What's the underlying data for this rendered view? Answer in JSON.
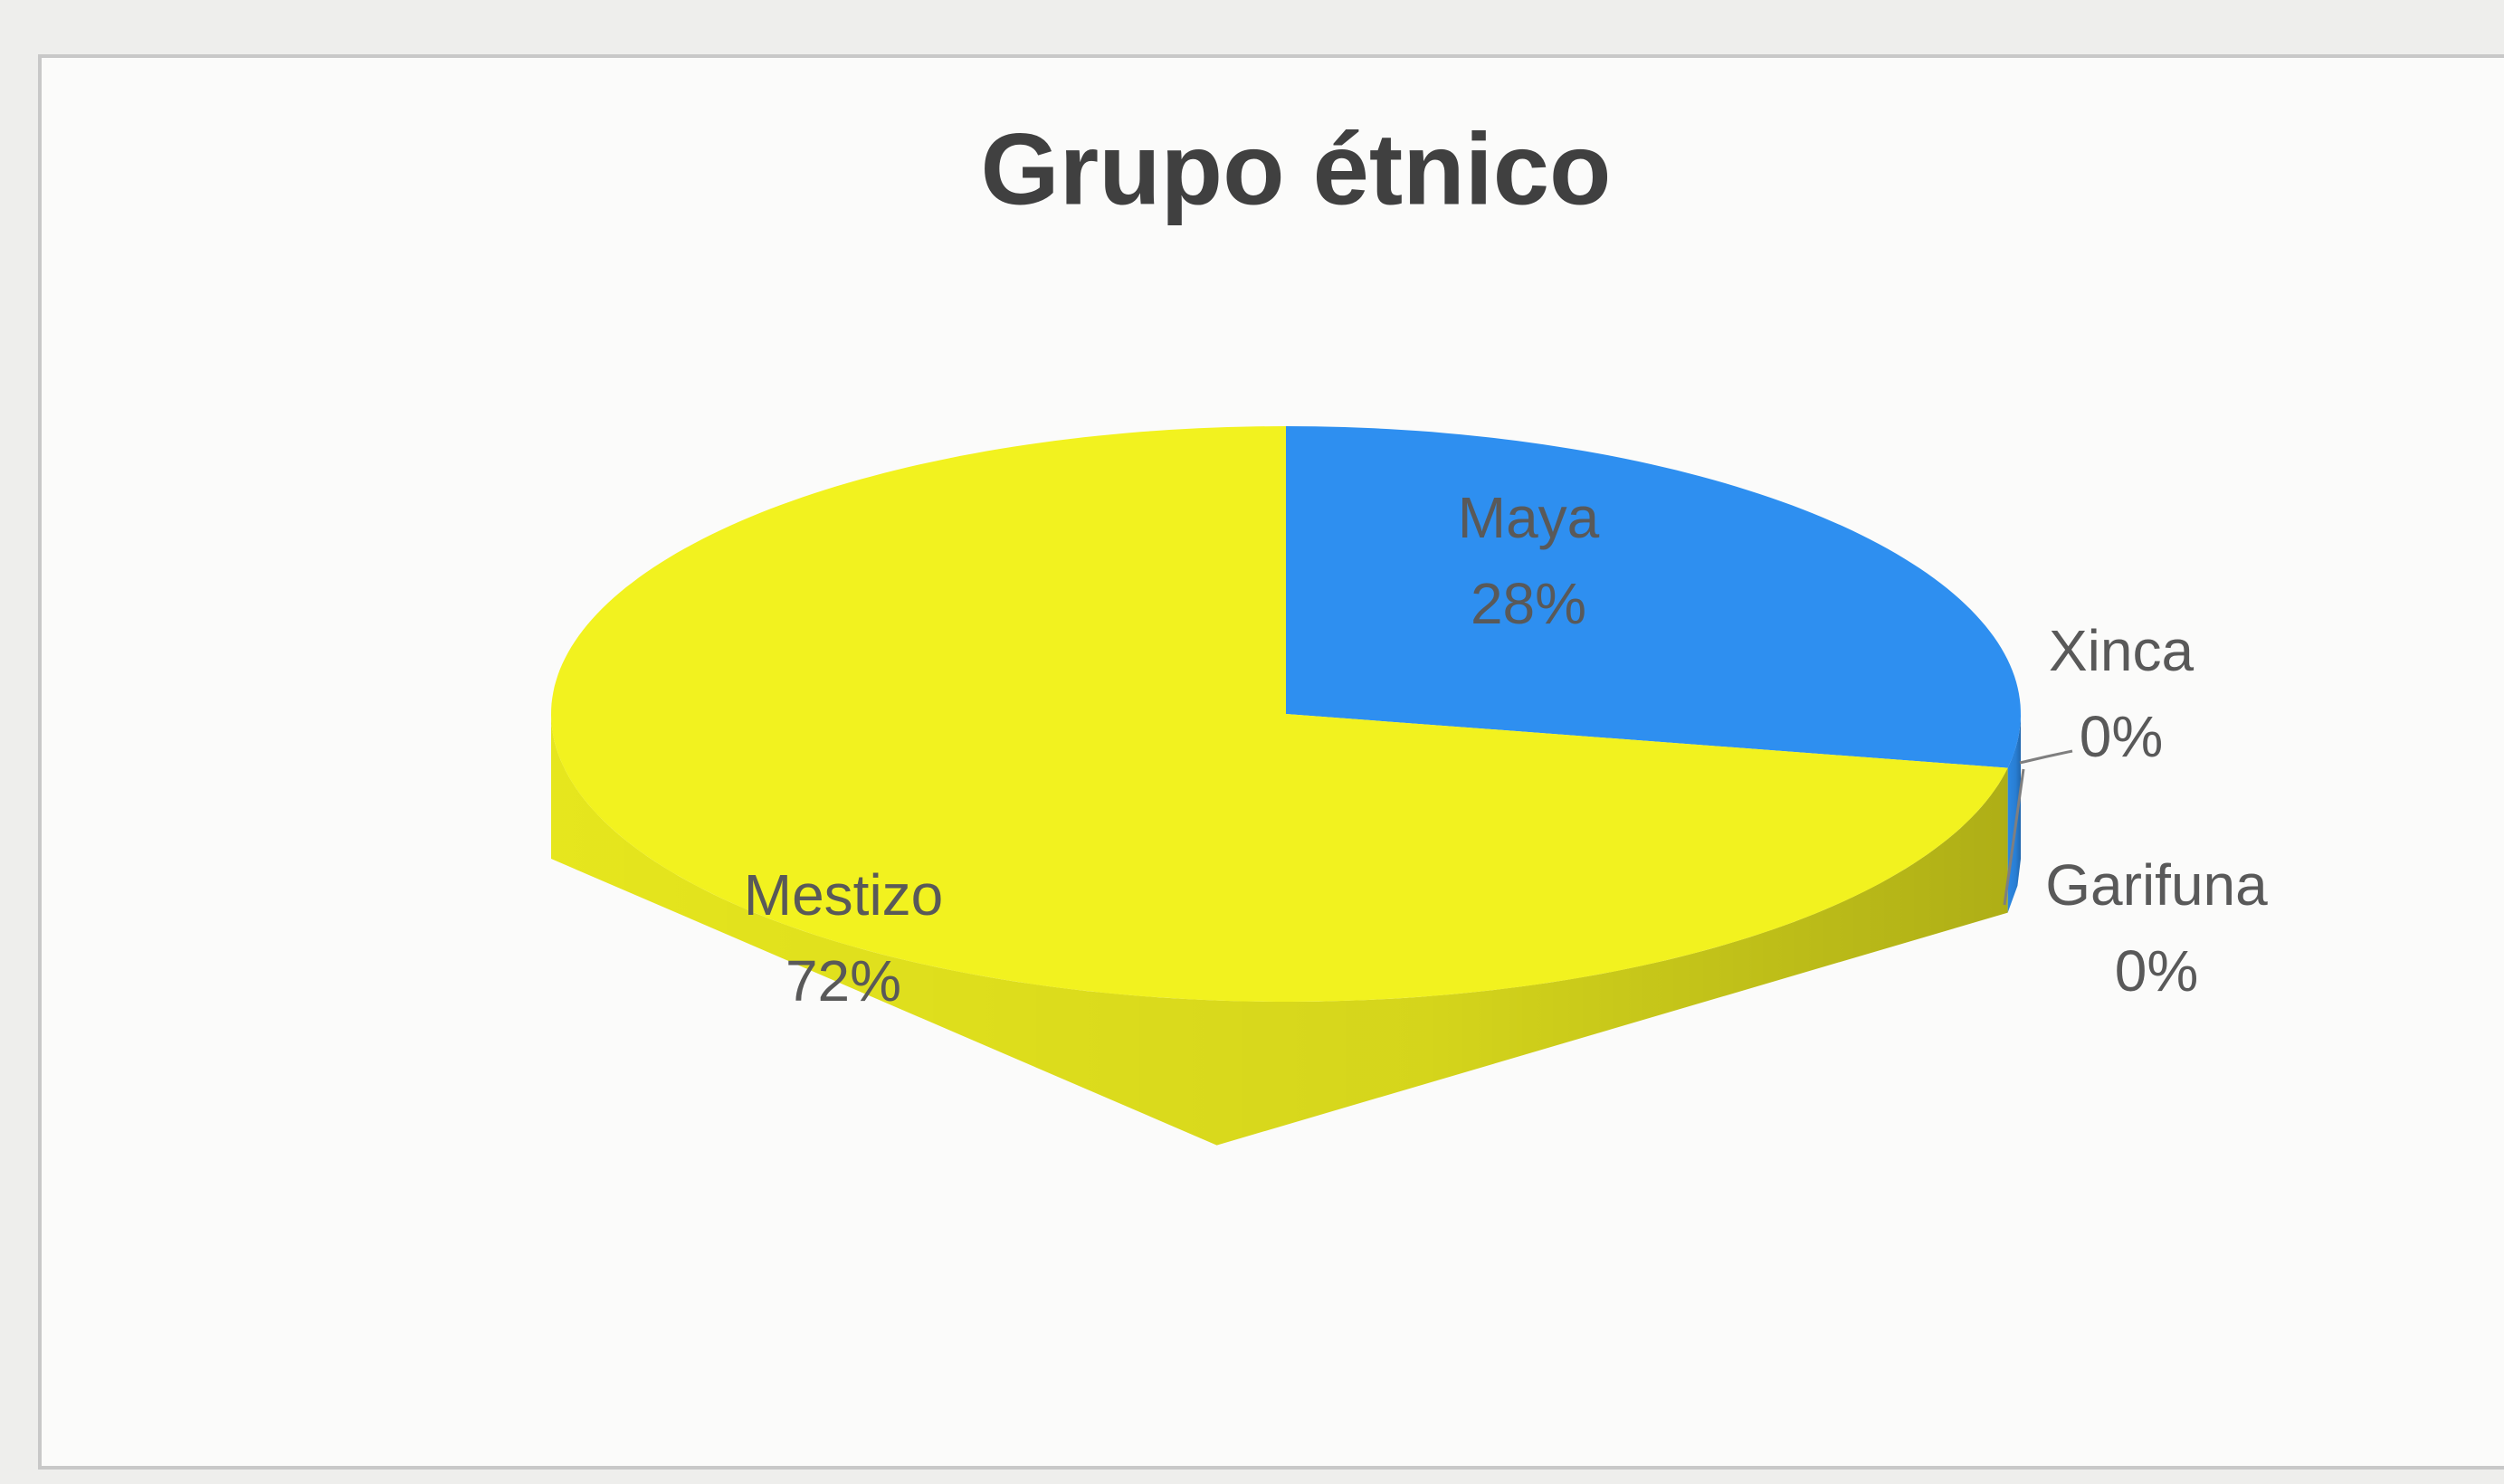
{
  "chart_data": {
    "type": "pie",
    "title": "Grupo étnico",
    "categories": [
      "Maya",
      "Xinca",
      "Garifuna",
      "Mestizo"
    ],
    "values": [
      28,
      0,
      0,
      72
    ],
    "value_labels": [
      "28%",
      "0%",
      "0%",
      "72%"
    ],
    "colors": [
      "#2e8ff0",
      "#a5a5a5",
      "#ffc000",
      "#f2f21f"
    ]
  }
}
